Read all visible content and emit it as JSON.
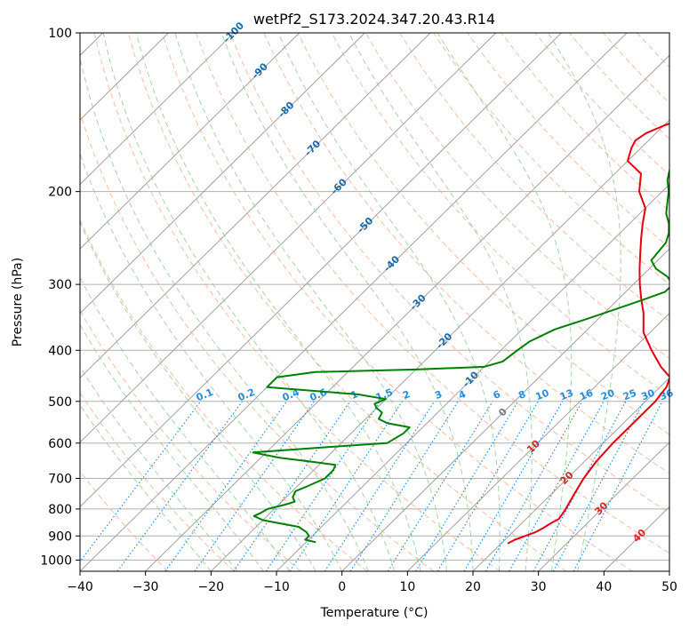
{
  "chart_data": {
    "type": "line",
    "title": "wetPf2_S173.2024.347.20.43.R14",
    "xlabel": "Temperature (°C)",
    "ylabel": "Pressure (hPa)",
    "xlim": [
      -40,
      50
    ],
    "ylim": [
      1050,
      100
    ],
    "y_scale": "log",
    "grid": true,
    "x_ticks": [
      -40,
      -30,
      -20,
      -10,
      0,
      10,
      20,
      30,
      40,
      50
    ],
    "y_ticks": [
      100,
      200,
      300,
      400,
      500,
      600,
      700,
      800,
      900,
      1000
    ],
    "colors": {
      "temperature": "#e8000b",
      "dewpoint": "#008000",
      "dry_adiabat": "#f4a582",
      "moist_adiabat": "#8fc98f",
      "mixing_ratio": "#1f8fe0",
      "isotherm": "#888888"
    },
    "series": [
      {
        "key": "temperature",
        "points": [
          [
            21,
            930
          ],
          [
            21.5,
            915
          ],
          [
            22.5,
            900
          ],
          [
            23.5,
            885
          ],
          [
            24,
            870
          ],
          [
            24.5,
            850
          ],
          [
            25,
            835
          ],
          [
            24.5,
            800
          ],
          [
            23.5,
            750
          ],
          [
            22.5,
            700
          ],
          [
            21.8,
            650
          ],
          [
            21.5,
            600
          ],
          [
            21.5,
            550
          ],
          [
            21.5,
            500
          ],
          [
            21,
            470
          ],
          [
            20,
            450
          ],
          [
            17,
            430
          ],
          [
            13,
            400
          ],
          [
            9,
            370
          ],
          [
            6,
            340
          ],
          [
            3.5,
            320
          ],
          [
            1,
            300
          ],
          [
            -1.5,
            280
          ],
          [
            -4,
            260
          ],
          [
            -6,
            245
          ],
          [
            -8,
            230
          ],
          [
            -10,
            215
          ],
          [
            -13.5,
            200
          ],
          [
            -16,
            185
          ],
          [
            -20,
            175
          ],
          [
            -21.5,
            165
          ],
          [
            -22,
            160
          ],
          [
            -21.5,
            155
          ],
          [
            -20,
            150
          ],
          [
            -18,
            145
          ],
          [
            -16.5,
            140
          ],
          [
            -15.5,
            135
          ],
          [
            -15,
            125
          ],
          [
            -15,
            115
          ],
          [
            -15.5,
            108
          ],
          [
            -16,
            100
          ]
        ]
      },
      {
        "key": "dewpoint",
        "points": [
          [
            -8.5,
            925
          ],
          [
            -10.5,
            915
          ],
          [
            -10.5,
            900
          ],
          [
            -11.5,
            885
          ],
          [
            -13.5,
            865
          ],
          [
            -20,
            840
          ],
          [
            -22,
            825
          ],
          [
            -21.5,
            815
          ],
          [
            -21,
            800
          ],
          [
            -19,
            785
          ],
          [
            -18,
            775
          ],
          [
            -19,
            760
          ],
          [
            -19.5,
            740
          ],
          [
            -18.5,
            725
          ],
          [
            -17,
            700
          ],
          [
            -17,
            675
          ],
          [
            -17.5,
            660
          ],
          [
            -22,
            650
          ],
          [
            -27,
            640
          ],
          [
            -32,
            625
          ],
          [
            -21,
            610
          ],
          [
            -13,
            600
          ],
          [
            -12,
            575
          ],
          [
            -12,
            560
          ],
          [
            -16,
            550
          ],
          [
            -18,
            540
          ],
          [
            -18.5,
            525
          ],
          [
            -20,
            515
          ],
          [
            -21,
            505
          ],
          [
            -20,
            495
          ],
          [
            -25,
            485
          ],
          [
            -40,
            470
          ],
          [
            -40,
            450
          ],
          [
            -35,
            440
          ],
          [
            -20,
            435
          ],
          [
            -10,
            430
          ],
          [
            -8,
            420
          ],
          [
            -7.5,
            400
          ],
          [
            -7,
            385
          ],
          [
            -5,
            365
          ],
          [
            -2,
            350
          ],
          [
            1,
            335
          ],
          [
            4,
            320
          ],
          [
            6,
            310
          ],
          [
            6,
            300
          ],
          [
            4,
            290
          ],
          [
            1,
            280
          ],
          [
            -1,
            270
          ],
          [
            -1.5,
            250
          ],
          [
            -2.5,
            240
          ],
          [
            -4,
            230
          ],
          [
            -6,
            220
          ],
          [
            -9,
            200
          ],
          [
            -11,
            190
          ],
          [
            -12.5,
            180
          ],
          [
            -14,
            170
          ],
          [
            -15,
            165
          ],
          [
            -14.5,
            160
          ],
          [
            -13,
            150
          ],
          [
            -12,
            145
          ],
          [
            -11.5,
            140
          ],
          [
            -11.5,
            130
          ],
          [
            -11.5,
            115
          ],
          [
            -10.5,
            108
          ],
          [
            -9.5,
            100
          ]
        ]
      }
    ],
    "isotherm_labels": [
      "-100",
      "-90",
      "-80",
      "-70",
      "-60",
      "-50",
      "-40",
      "-30",
      "-20",
      "-10",
      "0",
      "10",
      "20",
      "30",
      "40"
    ],
    "isotherm_label_values": [
      -100,
      -90,
      -80,
      -70,
      -60,
      -50,
      -40,
      -30,
      -20,
      -10,
      0,
      10,
      20,
      30,
      40
    ],
    "mixing_ratio_labels": [
      "0.1",
      "0.2",
      "0.4",
      "0.6",
      "1",
      "1.5",
      "2",
      "3",
      "4",
      "6",
      "8",
      "10",
      "13",
      "16",
      "20",
      "25",
      "30",
      "36"
    ],
    "mixing_ratio_values": [
      0.1,
      0.2,
      0.4,
      0.6,
      1,
      1.5,
      2,
      3,
      4,
      6,
      8,
      10,
      13,
      16,
      20,
      25,
      30,
      36
    ]
  }
}
